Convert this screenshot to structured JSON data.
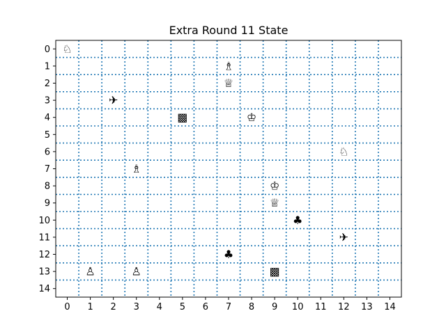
{
  "title": "Extra Round 11 State",
  "board": {
    "cols": 15,
    "rows": 15,
    "grid_color": "#1f77b4",
    "grid_style": "dotted",
    "x_tick_labels": [
      "0",
      "1",
      "2",
      "3",
      "4",
      "5",
      "6",
      "7",
      "8",
      "9",
      "10",
      "11",
      "12",
      "13",
      "14"
    ],
    "y_tick_labels": [
      "0",
      "1",
      "2",
      "3",
      "4",
      "5",
      "6",
      "7",
      "8",
      "9",
      "10",
      "11",
      "12",
      "13",
      "14"
    ],
    "y_axis_direction": "down"
  },
  "pieces": [
    {
      "col": 0,
      "row": 0,
      "glyph": "♘",
      "name": "white-knight"
    },
    {
      "col": 7,
      "row": 1,
      "glyph": "♗",
      "name": "white-bishop"
    },
    {
      "col": 7,
      "row": 2,
      "glyph": "♕",
      "name": "white-queen"
    },
    {
      "col": 2,
      "row": 3,
      "glyph": "✈",
      "name": "airplane"
    },
    {
      "col": 5,
      "row": 4,
      "glyph": "▩",
      "name": "checkered-square"
    },
    {
      "col": 8,
      "row": 4,
      "glyph": "♔",
      "name": "white-king"
    },
    {
      "col": 12,
      "row": 6,
      "glyph": "♘",
      "name": "white-knight"
    },
    {
      "col": 3,
      "row": 7,
      "glyph": "♗",
      "name": "white-bishop"
    },
    {
      "col": 9,
      "row": 8,
      "glyph": "♔",
      "name": "white-king"
    },
    {
      "col": 9,
      "row": 9,
      "glyph": "♕",
      "name": "white-queen"
    },
    {
      "col": 10,
      "row": 10,
      "glyph": "♣",
      "name": "club"
    },
    {
      "col": 12,
      "row": 11,
      "glyph": "✈",
      "name": "airplane"
    },
    {
      "col": 7,
      "row": 12,
      "glyph": "♣",
      "name": "club"
    },
    {
      "col": 1,
      "row": 13,
      "glyph": "♙",
      "name": "white-pawn"
    },
    {
      "col": 3,
      "row": 13,
      "glyph": "♙",
      "name": "white-pawn"
    },
    {
      "col": 9,
      "row": 13,
      "glyph": "▩",
      "name": "checkered-square"
    }
  ]
}
